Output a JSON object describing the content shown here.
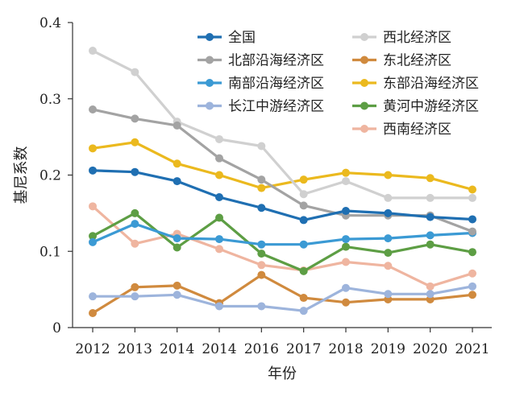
{
  "chart_data": {
    "type": "line",
    "title": "",
    "xlabel": "年份",
    "ylabel": "基尼系数",
    "ylim": [
      0,
      0.4
    ],
    "yticks": [
      "0",
      "0.1",
      "0.2",
      "0.3",
      "0.4"
    ],
    "categories": [
      "2012",
      "2013",
      "2014",
      "2014",
      "2016",
      "2017",
      "2018",
      "2019",
      "2020",
      "2021"
    ],
    "grid": false,
    "legend_position": "top-right",
    "series": [
      {
        "name": "全国",
        "color": "#1f6fb2",
        "values": [
          0.206,
          0.204,
          0.192,
          0.171,
          0.157,
          0.141,
          0.153,
          0.15,
          0.145,
          0.142
        ]
      },
      {
        "name": "北部沿海经济区",
        "color": "#a3a3a3",
        "values": [
          0.286,
          0.274,
          0.265,
          0.222,
          0.194,
          0.16,
          0.147,
          0.147,
          0.147,
          0.126
        ]
      },
      {
        "name": "南部沿海经济区",
        "color": "#3b9ad4",
        "values": [
          0.112,
          0.136,
          0.117,
          0.116,
          0.109,
          0.109,
          0.116,
          0.117,
          0.121,
          0.124
        ]
      },
      {
        "name": "长江中游经济区",
        "color": "#9db4dc",
        "values": [
          0.041,
          0.041,
          0.043,
          0.028,
          0.028,
          0.022,
          0.052,
          0.044,
          0.044,
          0.054
        ]
      },
      {
        "name": "西北经济区",
        "color": "#d0d0d0",
        "values": [
          0.363,
          0.335,
          0.27,
          0.247,
          0.238,
          0.175,
          0.192,
          0.17,
          0.17,
          0.17
        ]
      },
      {
        "name": "东北经济区",
        "color": "#d08a3e",
        "values": [
          0.019,
          0.053,
          0.055,
          0.032,
          0.069,
          0.039,
          0.033,
          0.037,
          0.037,
          0.043
        ]
      },
      {
        "name": "东部沿海经济区",
        "color": "#ebb91e",
        "values": [
          0.235,
          0.243,
          0.215,
          0.2,
          0.183,
          0.194,
          0.203,
          0.2,
          0.196,
          0.181
        ]
      },
      {
        "name": "黄河中游经济区",
        "color": "#5d9e44",
        "values": [
          0.12,
          0.15,
          0.105,
          0.144,
          0.097,
          0.074,
          0.106,
          0.098,
          0.109,
          0.099
        ]
      },
      {
        "name": "西南经济区",
        "color": "#efb5a0",
        "values": [
          0.159,
          0.11,
          0.123,
          0.103,
          0.082,
          0.075,
          0.086,
          0.081,
          0.054,
          0.071
        ]
      }
    ]
  }
}
